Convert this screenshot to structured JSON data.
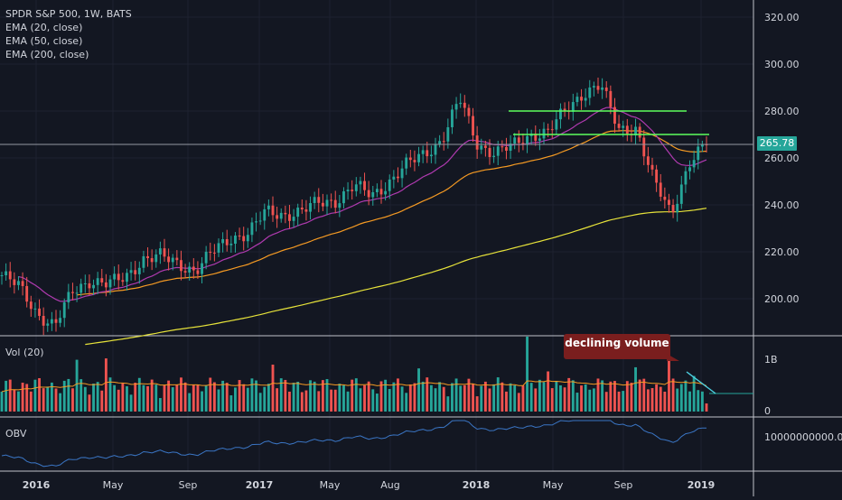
{
  "header": {
    "title": "SPDR S&P 500, 1W, BATS",
    "ema20": "EMA (20, close)",
    "ema50": "EMA (50, close)",
    "ema200": "EMA (200, close)"
  },
  "panes": {
    "volume_label": "Vol (20)",
    "obv_label": "OBV"
  },
  "annotation": {
    "text": "declining volume"
  },
  "price_badge": "265.78",
  "colors": {
    "background": "#131722",
    "up": "#26a69a",
    "down": "#ef5350",
    "ema20": "#b03ab0",
    "ema50": "#f59a23",
    "ema200": "#e6e23a",
    "hline": "#5cff5c",
    "obv": "#3a75c4"
  },
  "chart_data": [
    {
      "type": "candlestick",
      "title": "SPDR S&P 500, 1W, BATS",
      "ylim": [
        180,
        325
      ],
      "y_ticks": [
        "320.00",
        "300.00",
        "280.00",
        "260.00",
        "240.00",
        "220.00",
        "200.00"
      ],
      "x_ticks": [
        "2016",
        "May",
        "Sep",
        "2017",
        "May",
        "Aug",
        "2018",
        "May",
        "Sep",
        "2019"
      ],
      "last_price": 265.78,
      "series": [
        {
          "name": "EMA (20, close)"
        },
        {
          "name": "EMA (50, close)"
        },
        {
          "name": "EMA (200, close)"
        }
      ],
      "close_path": [
        [
          "2015-10",
          210
        ],
        [
          "2015-12",
          205
        ],
        [
          "2016-01",
          194
        ],
        [
          "2016-02",
          188
        ],
        [
          "2016-03",
          203
        ],
        [
          "2016-04",
          208
        ],
        [
          "2016-05",
          206
        ],
        [
          "2016-06",
          209
        ],
        [
          "2016-07",
          217
        ],
        [
          "2016-08",
          218
        ],
        [
          "2016-09",
          215
        ],
        [
          "2016-10",
          212
        ],
        [
          "2016-11",
          220
        ],
        [
          "2016-12",
          226
        ],
        [
          "2017-01",
          228
        ],
        [
          "2017-02",
          237
        ],
        [
          "2017-03",
          236
        ],
        [
          "2017-04",
          237
        ],
        [
          "2017-05",
          241
        ],
        [
          "2017-06",
          242
        ],
        [
          "2017-07",
          248
        ],
        [
          "2017-08",
          244
        ],
        [
          "2017-09",
          250
        ],
        [
          "2017-10",
          257
        ],
        [
          "2017-11",
          262
        ],
        [
          "2017-12",
          268
        ],
        [
          "2018-01",
          285
        ],
        [
          "2018-02",
          266
        ],
        [
          "2018-03",
          262
        ],
        [
          "2018-04",
          265
        ],
        [
          "2018-05",
          270
        ],
        [
          "2018-06",
          271
        ],
        [
          "2018-07",
          280
        ],
        [
          "2018-08",
          288
        ],
        [
          "2018-09",
          291
        ],
        [
          "2018-10",
          272
        ],
        [
          "2018-11",
          273
        ],
        [
          "2018-12",
          250
        ],
        [
          "2018-12-24",
          236
        ],
        [
          "2019-01",
          258
        ],
        [
          "2019-01-18",
          265.78
        ]
      ],
      "horizontal_lines": [
        280,
        270
      ]
    },
    {
      "type": "bar",
      "title": "Vol (20)",
      "y_ticks": [
        "1B",
        "0"
      ],
      "notes": "weekly volume bars colored by candle direction"
    },
    {
      "type": "line",
      "title": "OBV",
      "y_ticks": [
        "10000000000.0000"
      ]
    }
  ]
}
